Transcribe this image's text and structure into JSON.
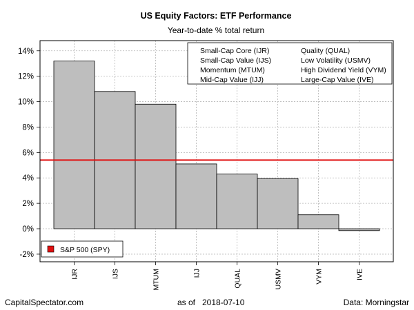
{
  "chart_data": {
    "type": "bar",
    "title": "US Equity Factors: ETF Performance",
    "subtitle": "Year-to-date % total return",
    "categories": [
      "IJR",
      "IJS",
      "MTUM",
      "IJJ",
      "QUAL",
      "USMV",
      "VYM",
      "IVE"
    ],
    "values": [
      13.2,
      10.8,
      9.8,
      5.1,
      4.3,
      3.95,
      1.1,
      -0.15
    ],
    "bar_color": "#bebebe",
    "ylim": [
      -2.6,
      14.8
    ],
    "yticks": [
      -2,
      0,
      2,
      4,
      6,
      8,
      10,
      12,
      14
    ],
    "ytick_labels": [
      "-2%",
      "0%",
      "2%",
      "4%",
      "6%",
      "8%",
      "10%",
      "12%",
      "14%"
    ],
    "grid": true,
    "reference_line": {
      "label": "S&P 500 (SPY)",
      "value": 5.4,
      "color": "#e01010"
    },
    "legend_position": "top-right",
    "legend_entries": [
      "Small-Cap Core (IJR)",
      "Small-Cap Value (IJS)",
      "Momentum (MTUM)",
      "Mid-Cap Value (IJJ)",
      "Quality (QUAL)",
      "Low Volatility (USMV)",
      "High Dividend Yield (VYM)",
      "Large-Cap Value (IVE)"
    ]
  },
  "footer": {
    "source_site": "CapitalSpectator.com",
    "as_of_label": "as of",
    "date": "2018-07-10",
    "data_source": "Data: Morningstar"
  }
}
